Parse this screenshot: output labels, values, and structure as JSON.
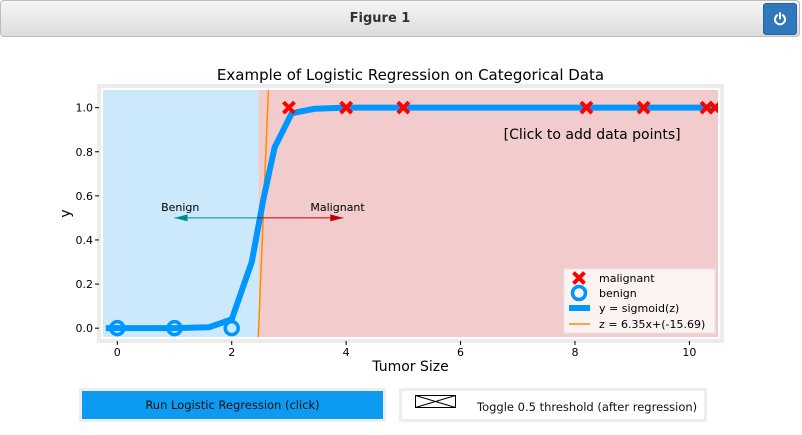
{
  "window": {
    "title": "Figure 1",
    "close_icon": "power-icon"
  },
  "chart_data": {
    "type": "scatter",
    "title": "Example of Logistic Regression on Categorical Data",
    "xlabel": "Tumor Size",
    "ylabel": "y",
    "xlim": [
      -0.25,
      10.5
    ],
    "ylim": [
      -0.04,
      1.08
    ],
    "xticks": [
      0,
      2,
      4,
      6,
      8,
      10
    ],
    "yticks": [
      0.0,
      0.2,
      0.4,
      0.6,
      0.8,
      1.0
    ],
    "region_split_x": 2.47,
    "regions": [
      {
        "name": "benign-region",
        "color": "#cce8fb"
      },
      {
        "name": "malignant-region",
        "color": "#f2cccc"
      }
    ],
    "series": [
      {
        "name": "malignant",
        "marker": "x",
        "color": "#ff0000",
        "x": [
          3.0,
          4.0,
          5.0,
          8.2,
          9.2,
          10.3,
          10.45
        ],
        "y": [
          1,
          1,
          1,
          1,
          1,
          1,
          1
        ]
      },
      {
        "name": "benign",
        "marker": "o",
        "color": "#0096ff",
        "x": [
          0.0,
          1.0,
          2.0
        ],
        "y": [
          0,
          0,
          0
        ]
      },
      {
        "name": "y = sigmoid(z)",
        "style": "line",
        "color": "#0096ff",
        "x": [
          -0.2,
          0.5,
          1.0,
          1.6,
          2.0,
          2.35,
          2.55,
          2.75,
          3.05,
          3.45,
          4.0,
          5.0,
          6.0,
          7.0,
          8.0,
          9.0,
          10.0,
          10.5
        ],
        "y": [
          0,
          0,
          0,
          0.004,
          0.04,
          0.3,
          0.58,
          0.82,
          0.975,
          0.995,
          1,
          1,
          1,
          1,
          1,
          1,
          1,
          1
        ]
      },
      {
        "name": "z = 6.35x+(-15.69)",
        "style": "line",
        "color": "#ff8c00",
        "slope": 6.35,
        "intercept": -15.69
      }
    ],
    "annotations": [
      {
        "text": "[Click to add data points]",
        "x": 8.3,
        "y": 0.88
      },
      {
        "text": "Benign",
        "x": 1.1,
        "y": 0.55,
        "arrow": {
          "from": 2.45,
          "to": 1.0,
          "y": 0.5,
          "color": "#008b8b"
        }
      },
      {
        "text": "Malignant",
        "x": 3.85,
        "y": 0.55,
        "arrow": {
          "from": 2.45,
          "to": 3.95,
          "y": 0.5,
          "color": "#c00000"
        }
      }
    ],
    "legend": {
      "position": "lower-right"
    },
    "grid": false
  },
  "controls": {
    "run_label": "Run Logistic Regression (click)",
    "toggle_label": "Toggle 0.5 threshold (after regression)"
  }
}
